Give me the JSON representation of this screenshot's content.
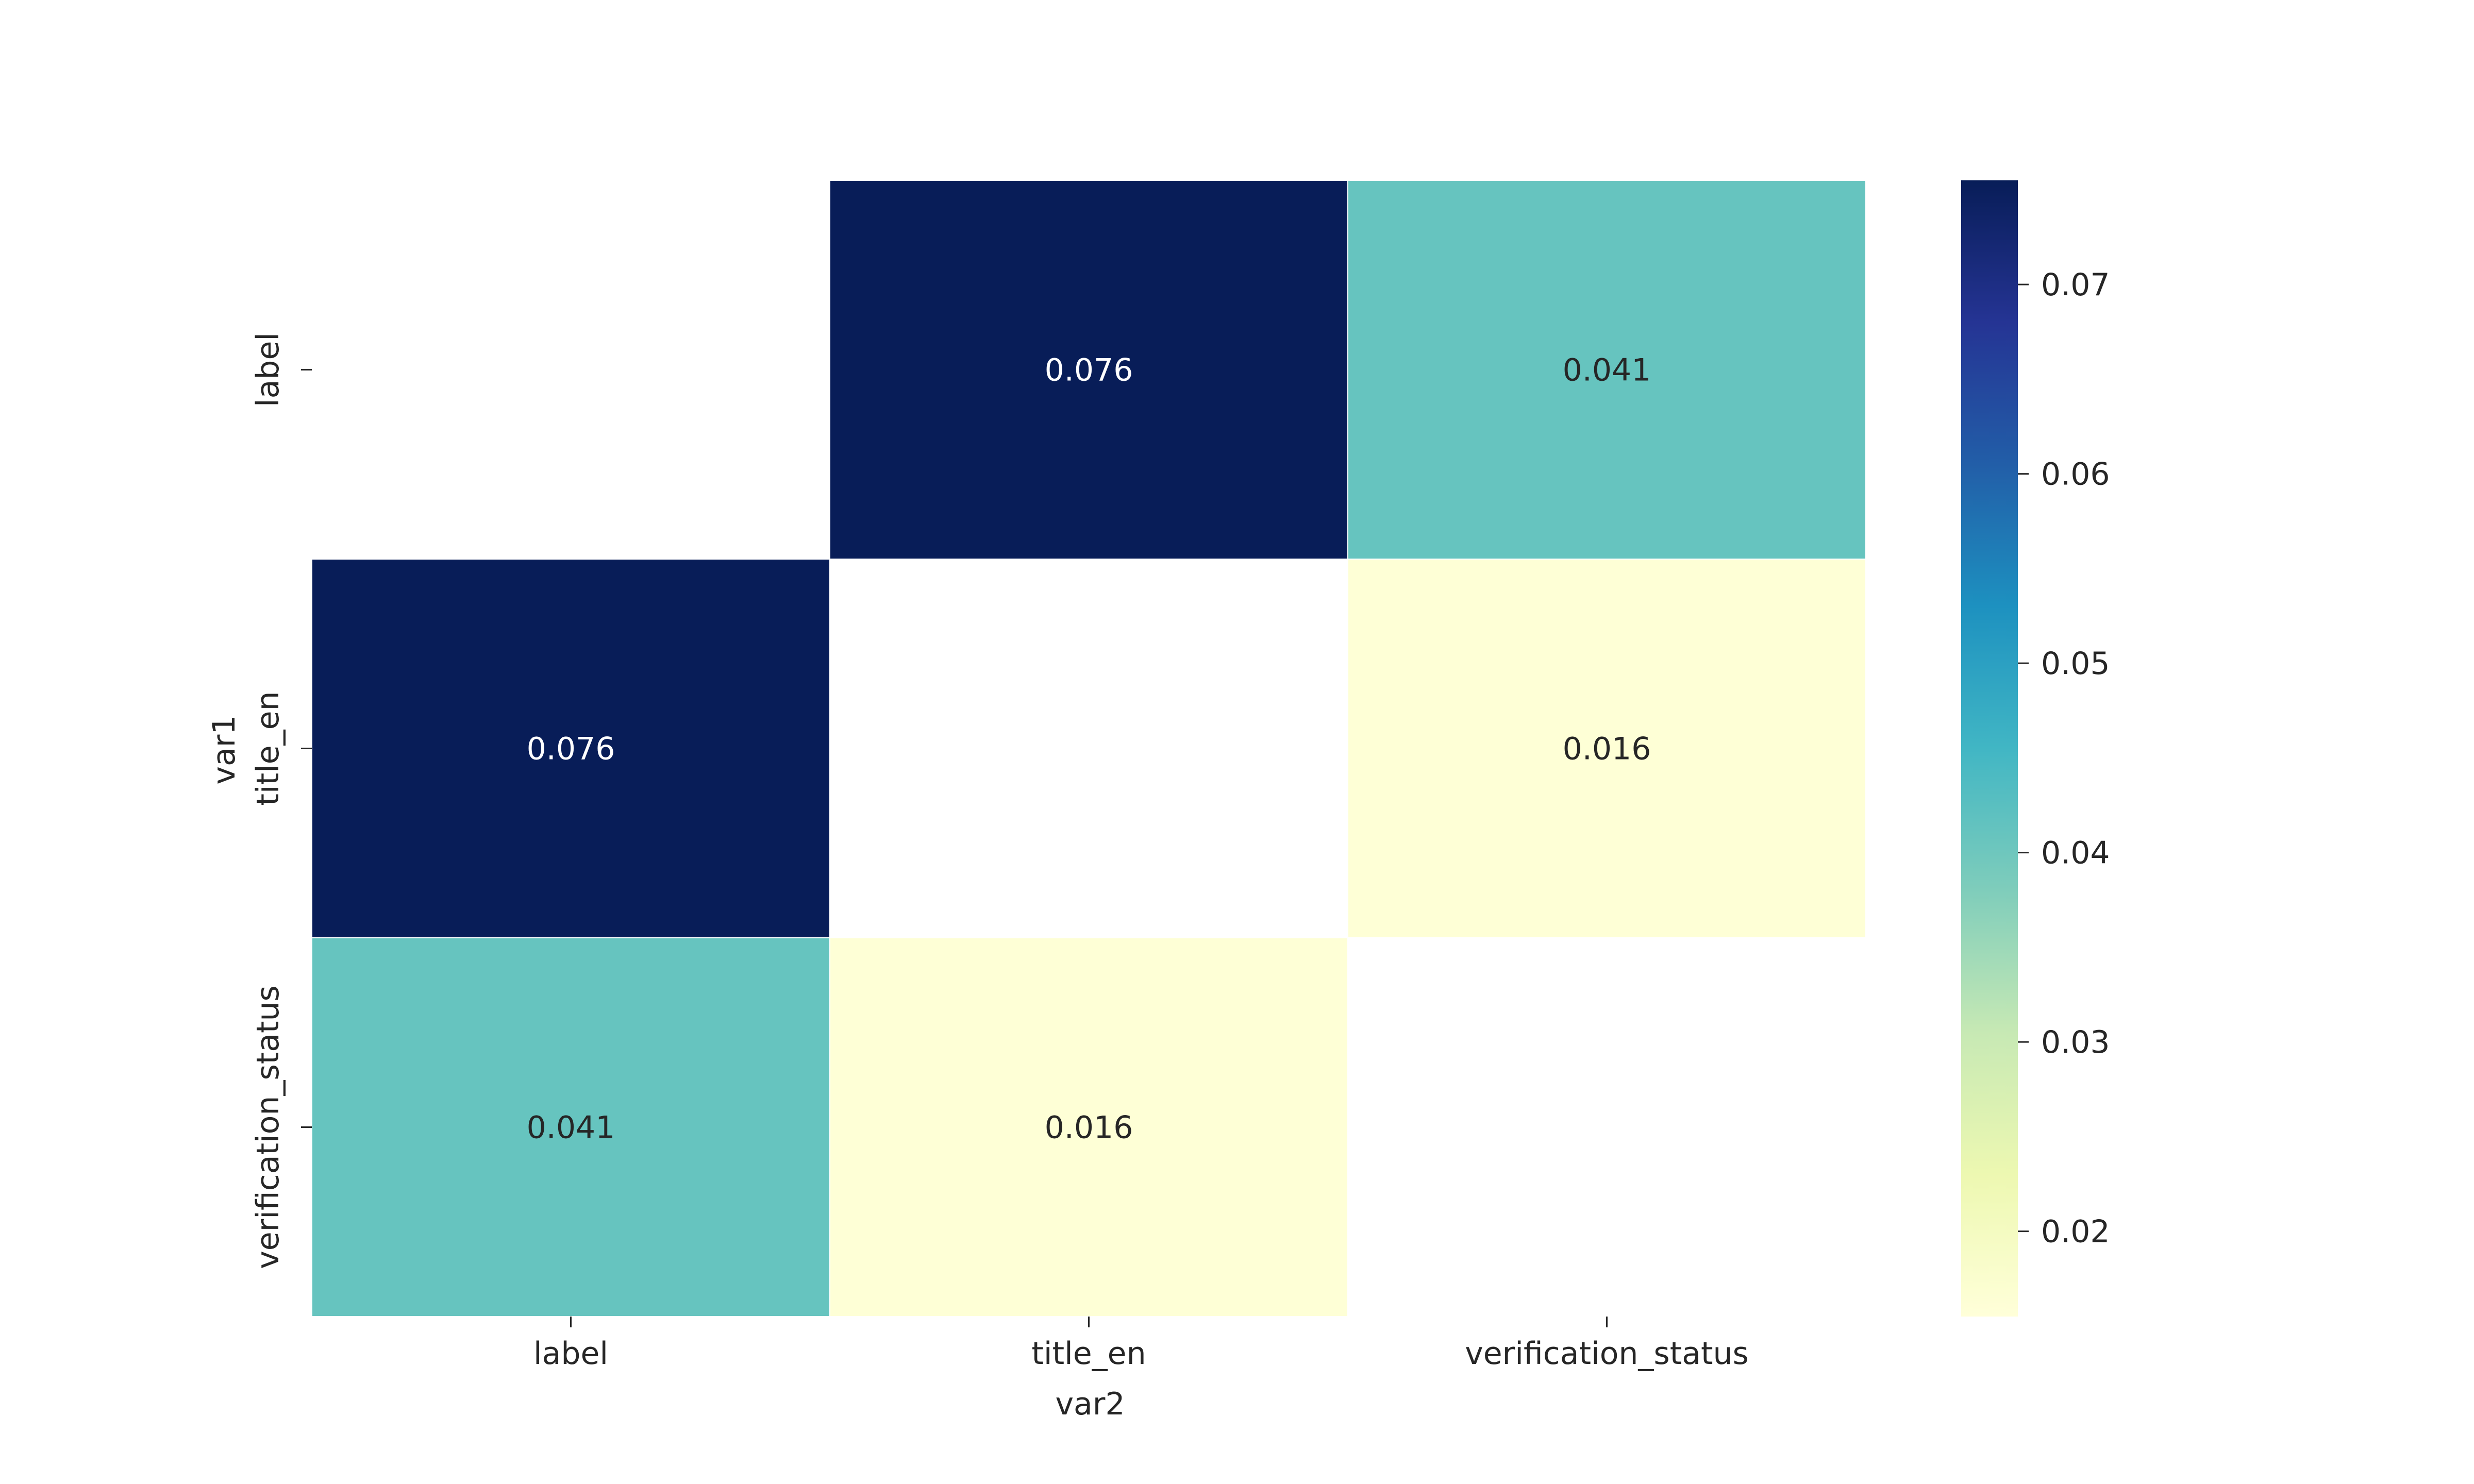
{
  "chart_data": {
    "type": "heatmap",
    "x_categories": [
      "label",
      "title_en",
      "verification_status"
    ],
    "y_categories": [
      "label",
      "title_en",
      "verification_status"
    ],
    "xlabel": "var2",
    "ylabel": "var1",
    "values": [
      [
        null,
        0.076,
        0.041
      ],
      [
        0.076,
        null,
        0.016
      ],
      [
        0.041,
        0.016,
        null
      ]
    ],
    "cell_labels": [
      [
        null,
        "0.076",
        "0.041"
      ],
      [
        "0.076",
        null,
        "0.016"
      ],
      [
        "0.041",
        "0.016",
        null
      ]
    ],
    "colorbar": {
      "min": 0.0155,
      "max": 0.0755,
      "ticks": [
        0.02,
        0.03,
        0.04,
        0.05,
        0.06,
        0.07
      ],
      "tick_labels": [
        "0.02",
        "0.03",
        "0.04",
        "0.05",
        "0.06",
        "0.07"
      ],
      "colormap": "YlGnBu",
      "colormap_stops": [
        "#ffffd9",
        "#edf8b1",
        "#c7e9b4",
        "#7fcdbb",
        "#41b6c4",
        "#1d91c0",
        "#225ea8",
        "#253494",
        "#081d58"
      ]
    },
    "missing_cells": "blank",
    "grid": false
  }
}
